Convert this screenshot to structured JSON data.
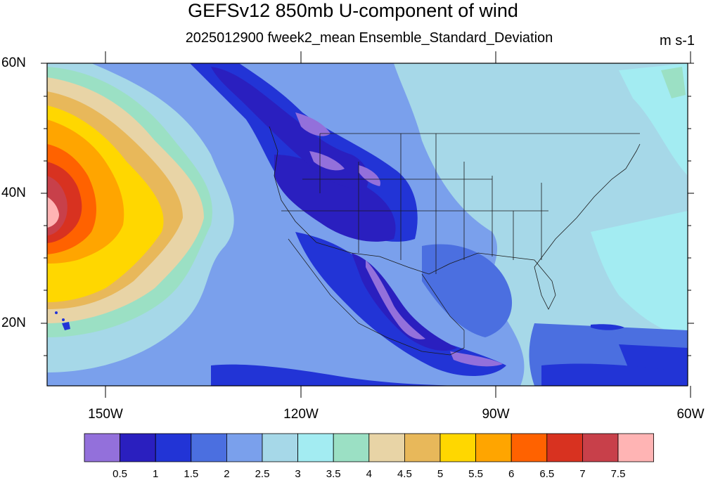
{
  "title": "GEFSv12 850mb U-component of wind",
  "subtitle": "2025012900 fweek2_mean Ensemble_Standard_Deviation",
  "units": "m s-1",
  "lat_labels": [
    "60N",
    "40N",
    "20N"
  ],
  "lon_labels": [
    "150W",
    "120W",
    "90W",
    "60W"
  ],
  "colorbar": {
    "labels": [
      "0.5",
      "1",
      "1.5",
      "2",
      "2.5",
      "3",
      "3.5",
      "4",
      "4.5",
      "5",
      "5.5",
      "6",
      "6.5",
      "7",
      "7.5"
    ],
    "colors": [
      "#9370db",
      "#2a1fbf",
      "#2234d6",
      "#4b6fe0",
      "#7aa0ec",
      "#a6d8e8",
      "#a3ecf2",
      "#9be0c4",
      "#e8d4a6",
      "#e8b85a",
      "#ffd700",
      "#ffa500",
      "#ff6200",
      "#d83220",
      "#c8404a",
      "#ffb4b4"
    ]
  }
}
